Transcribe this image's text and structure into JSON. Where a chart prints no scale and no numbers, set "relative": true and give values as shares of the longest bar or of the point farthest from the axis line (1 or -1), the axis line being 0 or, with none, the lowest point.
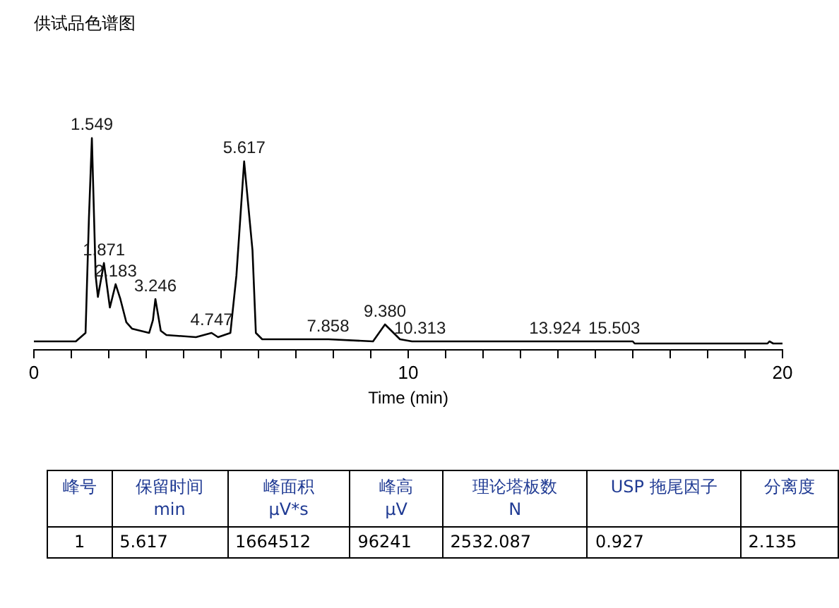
{
  "chart_data": [
    {
      "type": "line",
      "title": "供试品色谱图",
      "xlabel": "Time (min)",
      "relative": true,
      "legend": false,
      "grid": false,
      "marker": "none",
      "line_style": "solid",
      "xlim": [
        0,
        20
      ],
      "xticks": [
        0,
        {
          "value": 1,
          "label": null
        },
        {
          "value": 2,
          "label": null
        },
        {
          "value": 3,
          "label": null
        },
        {
          "value": 4,
          "label": null
        },
        {
          "value": 5,
          "label": null
        },
        {
          "value": 6,
          "label": null
        },
        {
          "value": 7,
          "label": null
        },
        {
          "value": 8,
          "label": null
        },
        {
          "value": 9,
          "label": null
        },
        10,
        {
          "value": 11,
          "label": null
        },
        {
          "value": 12,
          "label": null
        },
        {
          "value": 13,
          "label": null
        },
        {
          "value": 14,
          "label": null
        },
        {
          "value": 15,
          "label": null
        },
        {
          "value": 16,
          "label": null
        },
        {
          "value": 17,
          "label": null
        },
        {
          "value": 18,
          "label": null
        },
        {
          "value": 19,
          "label": null
        },
        20
      ],
      "series": [
        {
          "color": "#000000",
          "x": [
            0,
            1.12,
            1.38,
            1.47,
            1.549,
            1.65,
            1.71,
            1.871,
            2.03,
            2.183,
            2.31,
            2.47,
            2.62,
            3.08,
            3.18,
            3.246,
            3.39,
            3.54,
            4.33,
            4.747,
            4.92,
            5.25,
            5.41,
            5.617,
            5.84,
            5.93,
            6.1,
            7.87,
            9.06,
            9.38,
            9.78,
            10.1,
            13.9,
            16.0,
            16.05,
            19.6,
            19.65,
            19.75,
            20
          ],
          "values": [
            0.04,
            0.04,
            0.08,
            0.62,
            1,
            0.35,
            0.25,
            0.41,
            0.2,
            0.31,
            0.24,
            0.13,
            0.1,
            0.08,
            0.14,
            0.24,
            0.09,
            0.07,
            0.06,
            0.08,
            0.06,
            0.08,
            0.35,
            0.89,
            0.47,
            0.08,
            0.05,
            0.05,
            0.04,
            0.12,
            0.05,
            0.04,
            0.04,
            0.04,
            0.03,
            0.03,
            0.04,
            0.03,
            0.03
          ]
        }
      ],
      "annotations": [
        {
          "text": "1.549",
          "x": 1.549,
          "y": 1
        },
        {
          "text": "1.871",
          "x": 1.871,
          "y": 0.41
        },
        {
          "text": "2.183",
          "x": 2.183,
          "y": 0.31
        },
        {
          "text": "3.246",
          "x": 3.246,
          "y": 0.24
        },
        {
          "text": "4.747",
          "x": 4.747,
          "y": 0.08
        },
        {
          "text": "5.617",
          "x": 5.617,
          "y": 0.89
        },
        {
          "text": "7.858",
          "x": 7.858,
          "y": 0.05
        },
        {
          "text": "9.380",
          "x": 9.38,
          "y": 0.12
        },
        {
          "text": "10.313",
          "x": 10.313,
          "y": 0.04
        },
        {
          "text": "13.924",
          "x": 13.924,
          "y": 0.04
        },
        {
          "text": "15.503",
          "x": 15.503,
          "y": 0.04
        }
      ]
    },
    {
      "type": "other",
      "annotations": [
        "峰号",
        "保留时间\nmin",
        "峰面积\nμV*s",
        "峰高\nμV",
        "理论塔板数\nN",
        "USP 拖尾因子",
        "分离度",
        "1",
        "5.617",
        "1664512",
        "96241",
        "2532.087",
        "0.927",
        "2.135"
      ]
    }
  ]
}
